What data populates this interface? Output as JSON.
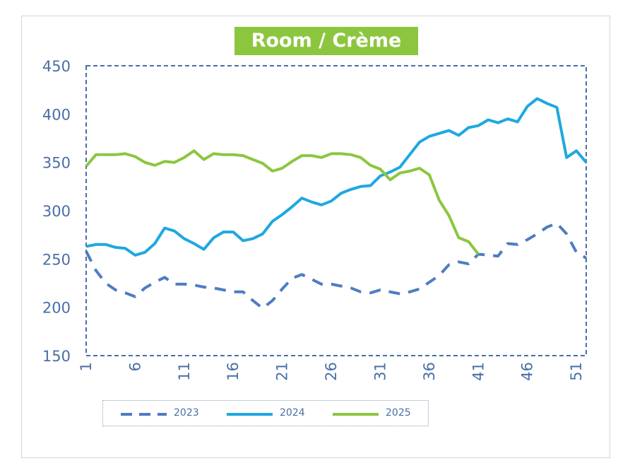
{
  "chart_data": {
    "type": "line",
    "title": "Room / Crème",
    "xlabel": "",
    "ylabel": "",
    "ylim": [
      150,
      450
    ],
    "yticks": [
      "150",
      "200",
      "250",
      "300",
      "350",
      "400",
      "450"
    ],
    "xlim": [
      1,
      52
    ],
    "xticks": [
      "1",
      "6",
      "11",
      "16",
      "21",
      "26",
      "31",
      "36",
      "41",
      "46",
      "51"
    ],
    "legend_position": "bottom",
    "series": [
      {
        "name": "2023",
        "color": "#4f7cc0",
        "style": "dashed",
        "values": [
          258,
          238,
          225,
          218,
          215,
          211,
          220,
          226,
          231,
          224,
          224,
          223,
          221,
          220,
          218,
          216,
          216,
          207,
          199,
          207,
          219,
          230,
          234,
          229,
          224,
          224,
          222,
          220,
          216,
          215,
          218,
          216,
          214,
          216,
          219,
          226,
          233,
          244,
          247,
          245,
          255,
          254,
          253,
          266,
          265,
          270,
          276,
          283,
          287,
          276,
          257,
          251
        ]
      },
      {
        "name": "2024",
        "color": "#1ea8e0",
        "style": "solid",
        "values": [
          263,
          265,
          265,
          262,
          261,
          254,
          257,
          266,
          282,
          279,
          271,
          266,
          260,
          272,
          278,
          278,
          269,
          271,
          276,
          289,
          296,
          304,
          313,
          309,
          306,
          310,
          318,
          322,
          325,
          326,
          336,
          340,
          345,
          358,
          371,
          377,
          380,
          383,
          378,
          386,
          388,
          394,
          391,
          395,
          392,
          408,
          416,
          411,
          407,
          355,
          362,
          350
        ]
      },
      {
        "name": "2025",
        "color": "#8cc63f",
        "style": "solid",
        "values": [
          346,
          358,
          358,
          358,
          359,
          356,
          350,
          347,
          351,
          350,
          355,
          362,
          353,
          359,
          358,
          358,
          357,
          353,
          349,
          341,
          344,
          351,
          357,
          357,
          355,
          359,
          359,
          358,
          355,
          347,
          343,
          332,
          339,
          341,
          344,
          337,
          311,
          295,
          272,
          268,
          255
        ]
      }
    ]
  }
}
